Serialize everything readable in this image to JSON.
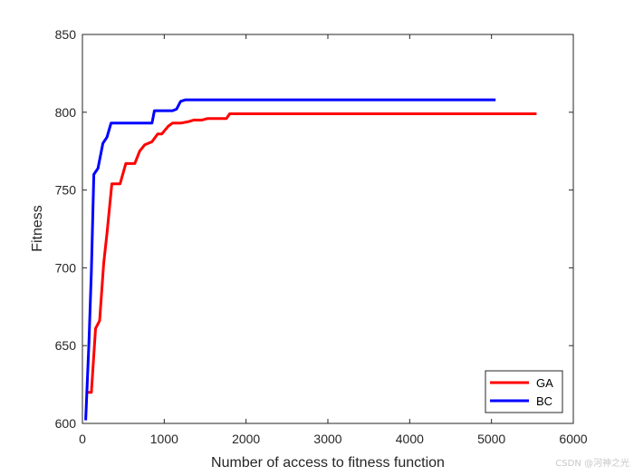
{
  "chart_data": {
    "type": "line",
    "title": "",
    "xlabel": "Number of access to fitness function",
    "ylabel": "Fitness",
    "xlim": [
      0,
      6000
    ],
    "ylim": [
      600,
      850
    ],
    "xticks": [
      0,
      1000,
      2000,
      3000,
      4000,
      5000,
      6000
    ],
    "yticks": [
      600,
      650,
      700,
      750,
      800,
      850
    ],
    "grid": false,
    "legend_position": "bottom-right",
    "series": [
      {
        "name": "GA",
        "color": "#ff0000",
        "points": [
          [
            50,
            620
          ],
          [
            110,
            620
          ],
          [
            160,
            661
          ],
          [
            210,
            666
          ],
          [
            260,
            703
          ],
          [
            300,
            722
          ],
          [
            360,
            754
          ],
          [
            460,
            754
          ],
          [
            530,
            767
          ],
          [
            640,
            767
          ],
          [
            700,
            775
          ],
          [
            760,
            779
          ],
          [
            850,
            781
          ],
          [
            920,
            786
          ],
          [
            970,
            786
          ],
          [
            1050,
            791
          ],
          [
            1100,
            793
          ],
          [
            1200,
            793
          ],
          [
            1300,
            794
          ],
          [
            1360,
            795
          ],
          [
            1460,
            795
          ],
          [
            1530,
            796
          ],
          [
            1700,
            796
          ],
          [
            1760,
            796
          ],
          [
            1800,
            799
          ],
          [
            1850,
            799
          ],
          [
            5550,
            799
          ]
        ]
      },
      {
        "name": "BC",
        "color": "#0000ff",
        "points": [
          [
            40,
            602
          ],
          [
            80,
            652
          ],
          [
            110,
            698
          ],
          [
            140,
            760
          ],
          [
            190,
            764
          ],
          [
            250,
            780
          ],
          [
            300,
            784
          ],
          [
            350,
            793
          ],
          [
            850,
            793
          ],
          [
            880,
            801
          ],
          [
            1100,
            801
          ],
          [
            1150,
            802
          ],
          [
            1200,
            807
          ],
          [
            1260,
            808
          ],
          [
            1320,
            808
          ],
          [
            5050,
            808
          ]
        ]
      }
    ]
  },
  "watermark": "CSDN @河神之光"
}
